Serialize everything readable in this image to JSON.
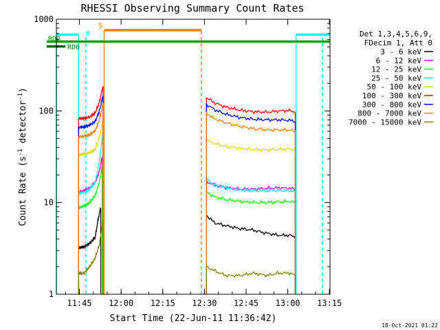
{
  "chart_data": {
    "type": "line",
    "title": "RHESSI Observing Summary Count Rates",
    "xlabel": "Start Time (22-Jun-11 11:36:42)",
    "ylabel_main": "Count Rate (s",
    "ylabel_sup1": "-1",
    "ylabel_mid": " detector",
    "ylabel_sup2": "-1",
    "ylabel_end": ")",
    "y_scale": "log",
    "ylim": [
      1,
      1000
    ],
    "xlim_minutes": [
      0,
      98.5
    ],
    "x_ticks": [
      {
        "label": "11:45",
        "minutes": 8.3
      },
      {
        "label": "12:00",
        "minutes": 23.3
      },
      {
        "label": "12:15",
        "minutes": 38.3
      },
      {
        "label": "12:30",
        "minutes": 53.3
      },
      {
        "label": "12:45",
        "minutes": 68.3
      },
      {
        "label": "13:00",
        "minutes": 83.3
      },
      {
        "label": "13:15",
        "minutes": 98.3
      }
    ],
    "y_ticks": [
      {
        "label": "1",
        "value": 1
      },
      {
        "label": "10",
        "value": 10
      },
      {
        "label": "100",
        "value": 100
      },
      {
        "label": "1000",
        "value": 1000
      }
    ],
    "legend_header": [
      "Det 1,3,4,5,6,9,",
      "FDecim 1, Att 0"
    ],
    "legend_position": "top-right",
    "series": [
      {
        "name": "3 - 6 keV",
        "color": "#000000",
        "segments": [
          {
            "x": [
              8.0,
              10.0,
              12.0,
              14.0,
              15.0,
              16.0
            ],
            "y": [
              3.2,
              3.3,
              3.6,
              4.2,
              6.5,
              9.0
            ]
          },
          {
            "x": [
              54.0,
              57.0,
              61.0,
              66.0,
              71.0,
              76.0,
              80.0,
              84.0,
              86.0
            ],
            "y": [
              7.3,
              6.0,
              5.6,
              5.2,
              5.0,
              4.6,
              4.4,
              4.4,
              4.2
            ]
          }
        ]
      },
      {
        "name": "6 - 12 keV",
        "color": "#e100e1",
        "segments": [
          {
            "x": [
              8.0,
              10.0,
              12.0,
              14.0,
              15.5,
              16.5
            ],
            "y": [
              13.0,
              13.5,
              14.5,
              16.5,
              22.0,
              32.0
            ]
          },
          {
            "x": [
              54.0,
              57.0,
              61.0,
              66.0,
              71.0,
              76.0,
              80.0,
              84.0,
              86.0
            ],
            "y": [
              17.0,
              15.5,
              14.6,
              14.0,
              14.0,
              14.3,
              14.5,
              14.3,
              14.0
            ]
          }
        ]
      },
      {
        "name": "12 - 25 keV",
        "color": "#00ff00",
        "segments": [
          {
            "x": [
              8.0,
              10.0,
              12.0,
              14.0,
              15.5,
              16.5
            ],
            "y": [
              8.8,
              9.2,
              10.0,
              12.0,
              17.0,
              25.0
            ]
          },
          {
            "x": [
              54.0,
              57.0,
              61.0,
              66.0,
              71.0,
              76.0,
              80.0,
              84.0,
              86.0
            ],
            "y": [
              13.0,
              11.5,
              10.8,
              10.3,
              10.0,
              10.0,
              10.2,
              10.3,
              10.0
            ]
          }
        ]
      },
      {
        "name": "25 - 50 keV",
        "color": "#00ffff",
        "segments": [
          {
            "x": [
              8.0,
              10.0,
              12.0,
              14.0,
              15.5,
              16.8
            ],
            "y": [
              12.5,
              13.0,
              14.0,
              16.5,
              28.0,
              60.0
            ]
          },
          {
            "x": [
              54.0,
              57.0,
              61.0,
              66.0,
              71.0,
              76.0,
              80.0,
              84.0,
              86.0
            ],
            "y": [
              18.0,
              15.5,
              14.5,
              13.8,
              13.5,
              13.5,
              13.6,
              13.5,
              13.3
            ]
          }
        ]
      },
      {
        "name": "50 - 100 keV",
        "color": "#dcdc00",
        "segments": [
          {
            "x": [
              8.0,
              10.0,
              12.0,
              14.0,
              15.5,
              16.8
            ],
            "y": [
              33.0,
              34.0,
              35.0,
              38.0,
              52.0,
              80.0
            ]
          },
          {
            "x": [
              54.0,
              57.0,
              61.0,
              66.0,
              71.0,
              76.0,
              80.0,
              84.0,
              86.0
            ],
            "y": [
              48.0,
              44.0,
              41.0,
              39.0,
              38.0,
              37.5,
              38.0,
              38.5,
              38.0
            ]
          }
        ]
      },
      {
        "name": "100 - 300 keV",
        "color": "#ff0000",
        "segments": [
          {
            "x": [
              8.0,
              10.0,
              12.0,
              14.0,
              15.5,
              16.8
            ],
            "y": [
              82.0,
              83.0,
              86.0,
              95.0,
              125.0,
              190.0
            ]
          },
          {
            "x": [
              54.0,
              57.0,
              61.0,
              66.0,
              71.0,
              76.0,
              80.0,
              84.0,
              86.0
            ],
            "y": [
              140.0,
              122.0,
              110.0,
              102.0,
              98.0,
              97.0,
              100.0,
              101.0,
              97.0
            ]
          }
        ]
      },
      {
        "name": "300 - 800 keV",
        "color": "#0000ff",
        "segments": [
          {
            "x": [
              8.0,
              10.0,
              12.0,
              14.0,
              15.5,
              16.8
            ],
            "y": [
              66.0,
              67.0,
              70.0,
              77.0,
              100.0,
              148.0
            ]
          },
          {
            "x": [
              54.0,
              57.0,
              61.0,
              66.0,
              71.0,
              76.0,
              80.0,
              84.0,
              86.0
            ],
            "y": [
              118.0,
              103.0,
              92.0,
              85.0,
              81.0,
              80.0,
              80.0,
              79.0,
              77.0
            ]
          }
        ]
      },
      {
        "name": "800 - 7000 keV",
        "color": "#ff8000",
        "segments": [
          {
            "x": [
              8.0,
              10.0,
              12.0,
              14.0,
              15.5,
              16.8
            ],
            "y": [
              52.0,
              53.0,
              55.0,
              61.0,
              80.0,
              120.0
            ]
          },
          {
            "x": [
              54.0,
              57.0,
              61.0,
              66.0,
              71.0,
              76.0,
              80.0,
              84.0,
              86.0
            ],
            "y": [
              95.0,
              82.0,
              74.0,
              68.0,
              64.0,
              62.0,
              62.0,
              62.0,
              60.0
            ]
          }
        ]
      },
      {
        "name": "7000 - 15000 keV",
        "color": "#808000",
        "segments": [
          {
            "x": [
              8.0,
              10.0,
              12.0,
              14.0,
              15.5,
              16.8
            ],
            "y": [
              1.7,
              1.7,
              2.0,
              2.5,
              3.5,
              6.5
            ]
          },
          {
            "x": [
              54.0,
              57.0,
              61.0,
              66.0,
              71.0,
              76.0,
              80.0,
              84.0,
              86.0
            ],
            "y": [
              2.0,
              1.8,
              1.6,
              1.6,
              1.7,
              1.6,
              1.7,
              1.7,
              1.6
            ]
          }
        ]
      }
    ],
    "flag_bars": [
      {
        "label": "RD0",
        "color": "#00a000",
        "x": [
          0,
          98.5
        ],
        "y": 570
      },
      {
        "label": "RD6",
        "color": "#006400",
        "x": [
          0,
          3.2
        ],
        "y": 505
      }
    ],
    "flag_segments": [
      {
        "label": "",
        "color": "#00ffff",
        "x": [
          0,
          8.0
        ],
        "y": 680
      },
      {
        "label": "",
        "color": "#00ffff",
        "x": [
          86.3,
          98.5
        ],
        "y": 680
      },
      {
        "label": "S",
        "color": "#ff8000",
        "x": [
          17.2,
          52.2
        ],
        "y": 760
      }
    ],
    "flag_text": [
      {
        "label": "N",
        "color": "#00ffff",
        "x": 10.6,
        "y": 640
      }
    ],
    "vertical_lines": [
      {
        "x": 8.0,
        "color": "#00ffff",
        "style": "solid",
        "ymax": 680
      },
      {
        "x": 10.6,
        "color": "#00ffff",
        "style": "dashed",
        "ymax": 640
      },
      {
        "x": 17.2,
        "color": "#ff8000",
        "style": "solid",
        "ymax": 760
      },
      {
        "x": 52.2,
        "color": "#ff8000",
        "style": "dashed",
        "ymax": 760
      },
      {
        "x": 86.3,
        "color": "#00ffff",
        "style": "solid",
        "ymax": 680
      },
      {
        "x": 95.8,
        "color": "#00ffff",
        "style": "dashed",
        "ymax": 680
      },
      {
        "x": 0.0,
        "color": "#00ffff",
        "style": "solid",
        "ymax": 680
      }
    ],
    "timestamp": "18-Oct-2021 01:22"
  }
}
